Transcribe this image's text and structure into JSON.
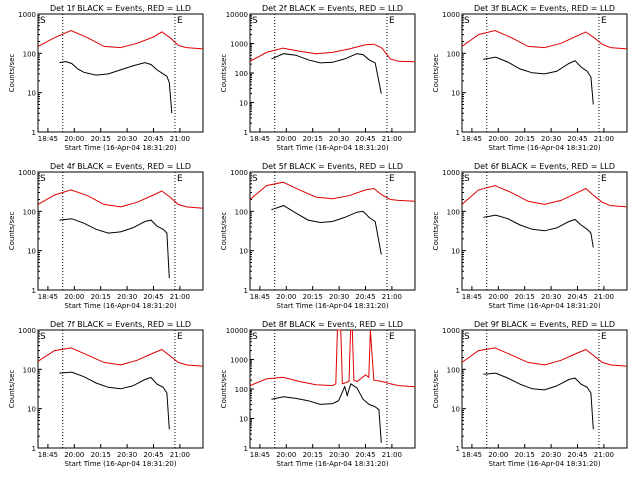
{
  "colors": {
    "events": "#000000",
    "lld": "#dd0000",
    "axis": "#000000",
    "background": "#ffffff"
  },
  "shared": {
    "xlabel": "Start Time (16-Apr-04 18:31:20)",
    "ylabel": "Counts/sec",
    "x_ticks": [
      "18:45",
      "20:00",
      "20:15",
      "20:30",
      "20:45",
      "21:00"
    ],
    "y_ticks": [
      "1",
      "10",
      "100",
      "1000"
    ],
    "y_ticks_det2": [
      "1",
      "10",
      "100",
      "1000",
      "10000"
    ],
    "s_marker": "S",
    "e_marker": "E"
  },
  "chart_data": [
    {
      "title": "Det 1f BLACK = Events, RED = LLD",
      "type": "line",
      "yscale": "log",
      "ylim": [
        1,
        1000
      ],
      "markers": {
        "s": "18:45",
        "e": "20:50"
      },
      "series": [
        {
          "name": "Events",
          "x": [
            0,
            0.05,
            0.1,
            0.15,
            0.2,
            0.3,
            0.4,
            0.5,
            0.6,
            0.7,
            0.75,
            0.8,
            0.85,
            0.88,
            0.9,
            0.92
          ],
          "y": [
            58,
            62,
            55,
            40,
            33,
            28,
            30,
            38,
            48,
            58,
            52,
            38,
            30,
            26,
            18,
            3
          ]
        },
        {
          "name": "LLD",
          "x": [
            0,
            0.1,
            0.2,
            0.3,
            0.4,
            0.5,
            0.6,
            0.7,
            0.75,
            0.8,
            0.85,
            0.9,
            1.0
          ],
          "y": [
            150,
            250,
            380,
            250,
            150,
            140,
            180,
            260,
            350,
            250,
            160,
            140,
            130
          ]
        }
      ]
    },
    {
      "title": "Det 2f BLACK = Events, RED = LLD",
      "type": "line",
      "yscale": "log",
      "ylim": [
        1,
        10000
      ],
      "markers": {
        "s": "18:45",
        "e": "20:50"
      },
      "series": [
        {
          "name": "Events",
          "x": [
            0,
            0.1,
            0.2,
            0.3,
            0.4,
            0.5,
            0.6,
            0.7,
            0.75,
            0.8,
            0.85,
            0.9
          ],
          "y": [
            300,
            450,
            400,
            280,
            220,
            230,
            300,
            450,
            420,
            280,
            220,
            20
          ]
        },
        {
          "name": "LLD",
          "x": [
            0,
            0.1,
            0.2,
            0.3,
            0.4,
            0.5,
            0.6,
            0.7,
            0.75,
            0.8,
            0.85,
            0.9,
            1.0
          ],
          "y": [
            250,
            500,
            700,
            550,
            450,
            500,
            650,
            900,
            950,
            700,
            300,
            250,
            240
          ]
        }
      ]
    },
    {
      "title": "Det 3f BLACK = Events, RED = LLD",
      "type": "line",
      "yscale": "log",
      "ylim": [
        1,
        1000
      ],
      "markers": {
        "s": "18:45",
        "e": "20:50"
      },
      "series": [
        {
          "name": "Events",
          "x": [
            0,
            0.1,
            0.2,
            0.3,
            0.4,
            0.5,
            0.6,
            0.7,
            0.75,
            0.8,
            0.85,
            0.88,
            0.9
          ],
          "y": [
            70,
            80,
            60,
            40,
            32,
            30,
            35,
            55,
            65,
            45,
            35,
            25,
            5
          ]
        },
        {
          "name": "LLD",
          "x": [
            0,
            0.1,
            0.2,
            0.3,
            0.4,
            0.5,
            0.6,
            0.7,
            0.75,
            0.8,
            0.85,
            0.9,
            1.0
          ],
          "y": [
            150,
            300,
            380,
            250,
            150,
            140,
            180,
            280,
            350,
            250,
            170,
            140,
            130
          ]
        }
      ]
    },
    {
      "title": "Det 4f BLACK = Events, RED = LLD",
      "type": "line",
      "yscale": "log",
      "ylim": [
        1,
        1000
      ],
      "markers": {
        "s": "18:45",
        "e": "20:50"
      },
      "series": [
        {
          "name": "Events",
          "x": [
            0,
            0.1,
            0.2,
            0.3,
            0.4,
            0.5,
            0.6,
            0.7,
            0.75,
            0.8,
            0.85,
            0.88,
            0.9
          ],
          "y": [
            60,
            65,
            50,
            35,
            28,
            30,
            38,
            55,
            60,
            42,
            35,
            28,
            2
          ]
        },
        {
          "name": "LLD",
          "x": [
            0,
            0.1,
            0.2,
            0.3,
            0.4,
            0.5,
            0.6,
            0.7,
            0.75,
            0.8,
            0.85,
            0.9,
            1.0
          ],
          "y": [
            150,
            260,
            350,
            250,
            150,
            130,
            170,
            260,
            330,
            230,
            150,
            130,
            120
          ]
        }
      ]
    },
    {
      "title": "Det 5f BLACK = Events, RED = LLD",
      "type": "line",
      "yscale": "log",
      "ylim": [
        1,
        1000
      ],
      "markers": {
        "s": "18:45",
        "e": "20:50"
      },
      "series": [
        {
          "name": "Events",
          "x": [
            0,
            0.1,
            0.2,
            0.3,
            0.4,
            0.5,
            0.6,
            0.7,
            0.75,
            0.8,
            0.85,
            0.9
          ],
          "y": [
            110,
            140,
            90,
            60,
            52,
            55,
            70,
            95,
            100,
            70,
            55,
            8
          ]
        },
        {
          "name": "LLD",
          "x": [
            0,
            0.1,
            0.2,
            0.3,
            0.4,
            0.5,
            0.6,
            0.7,
            0.75,
            0.8,
            0.85,
            0.9,
            1.0
          ],
          "y": [
            200,
            450,
            550,
            350,
            230,
            210,
            250,
            350,
            380,
            260,
            200,
            190,
            180
          ]
        }
      ]
    },
    {
      "title": "Det 6f BLACK = Events, RED = LLD",
      "type": "line",
      "yscale": "log",
      "ylim": [
        1,
        1000
      ],
      "markers": {
        "s": "18:45",
        "e": "20:50"
      },
      "series": [
        {
          "name": "Events",
          "x": [
            0,
            0.1,
            0.2,
            0.3,
            0.4,
            0.5,
            0.6,
            0.7,
            0.75,
            0.8,
            0.85,
            0.88,
            0.9
          ],
          "y": [
            70,
            80,
            65,
            45,
            35,
            32,
            38,
            55,
            62,
            45,
            35,
            28,
            12
          ]
        },
        {
          "name": "LLD",
          "x": [
            0,
            0.1,
            0.2,
            0.3,
            0.4,
            0.5,
            0.6,
            0.7,
            0.75,
            0.8,
            0.85,
            0.9,
            1.0
          ],
          "y": [
            150,
            350,
            450,
            300,
            180,
            150,
            190,
            300,
            380,
            250,
            170,
            140,
            130
          ]
        }
      ]
    },
    {
      "title": "Det 7f BLACK = Events, RED = LLD",
      "type": "line",
      "yscale": "log",
      "ylim": [
        1,
        1000
      ],
      "markers": {
        "s": "18:45",
        "e": "20:50"
      },
      "series": [
        {
          "name": "Events",
          "x": [
            0,
            0.1,
            0.2,
            0.3,
            0.4,
            0.5,
            0.6,
            0.7,
            0.75,
            0.8,
            0.85,
            0.88,
            0.9
          ],
          "y": [
            80,
            85,
            65,
            45,
            35,
            32,
            38,
            55,
            62,
            42,
            35,
            25,
            3
          ]
        },
        {
          "name": "LLD",
          "x": [
            0,
            0.1,
            0.2,
            0.3,
            0.4,
            0.5,
            0.6,
            0.7,
            0.75,
            0.8,
            0.85,
            0.9,
            1.0
          ],
          "y": [
            160,
            300,
            350,
            230,
            150,
            130,
            170,
            260,
            320,
            220,
            150,
            130,
            120
          ]
        }
      ]
    },
    {
      "title": "Det 8f BLACK = Events, RED = LLD",
      "type": "line",
      "yscale": "log",
      "ylim": [
        1,
        10000
      ],
      "markers": {
        "s": "18:45",
        "e": "20:50"
      },
      "series": [
        {
          "name": "Events",
          "x": [
            0,
            0.1,
            0.2,
            0.3,
            0.4,
            0.5,
            0.55,
            0.6,
            0.62,
            0.65,
            0.7,
            0.75,
            0.8,
            0.85,
            0.88,
            0.9
          ],
          "y": [
            45,
            55,
            48,
            40,
            30,
            32,
            40,
            120,
            60,
            150,
            110,
            45,
            30,
            25,
            20,
            1.5
          ]
        },
        {
          "name": "LLD",
          "x": [
            0,
            0.1,
            0.2,
            0.3,
            0.4,
            0.5,
            0.52,
            0.53,
            0.55,
            0.56,
            0.6,
            0.61,
            0.62,
            0.63,
            0.65,
            0.7,
            0.72,
            0.73,
            0.75,
            0.8,
            0.85,
            0.9,
            1.0
          ],
          "y": [
            130,
            220,
            250,
            180,
            140,
            130,
            150,
            10000,
            10000,
            150,
            180,
            10000,
            10000,
            200,
            180,
            300,
            250,
            10000,
            200,
            180,
            150,
            130,
            120
          ]
        }
      ]
    },
    {
      "title": "Det 9f BLACK = Events, RED = LLD",
      "type": "line",
      "yscale": "log",
      "ylim": [
        1,
        1000
      ],
      "markers": {
        "s": "18:45",
        "e": "20:50"
      },
      "series": [
        {
          "name": "Events",
          "x": [
            0,
            0.1,
            0.2,
            0.3,
            0.4,
            0.5,
            0.6,
            0.7,
            0.75,
            0.8,
            0.85,
            0.88,
            0.9
          ],
          "y": [
            75,
            80,
            60,
            42,
            32,
            30,
            38,
            55,
            60,
            42,
            35,
            25,
            3
          ]
        },
        {
          "name": "LLD",
          "x": [
            0,
            0.1,
            0.2,
            0.3,
            0.4,
            0.5,
            0.6,
            0.7,
            0.75,
            0.8,
            0.85,
            0.9,
            1.0
          ],
          "y": [
            150,
            300,
            350,
            230,
            150,
            130,
            170,
            260,
            320,
            220,
            150,
            130,
            120
          ]
        }
      ]
    }
  ]
}
